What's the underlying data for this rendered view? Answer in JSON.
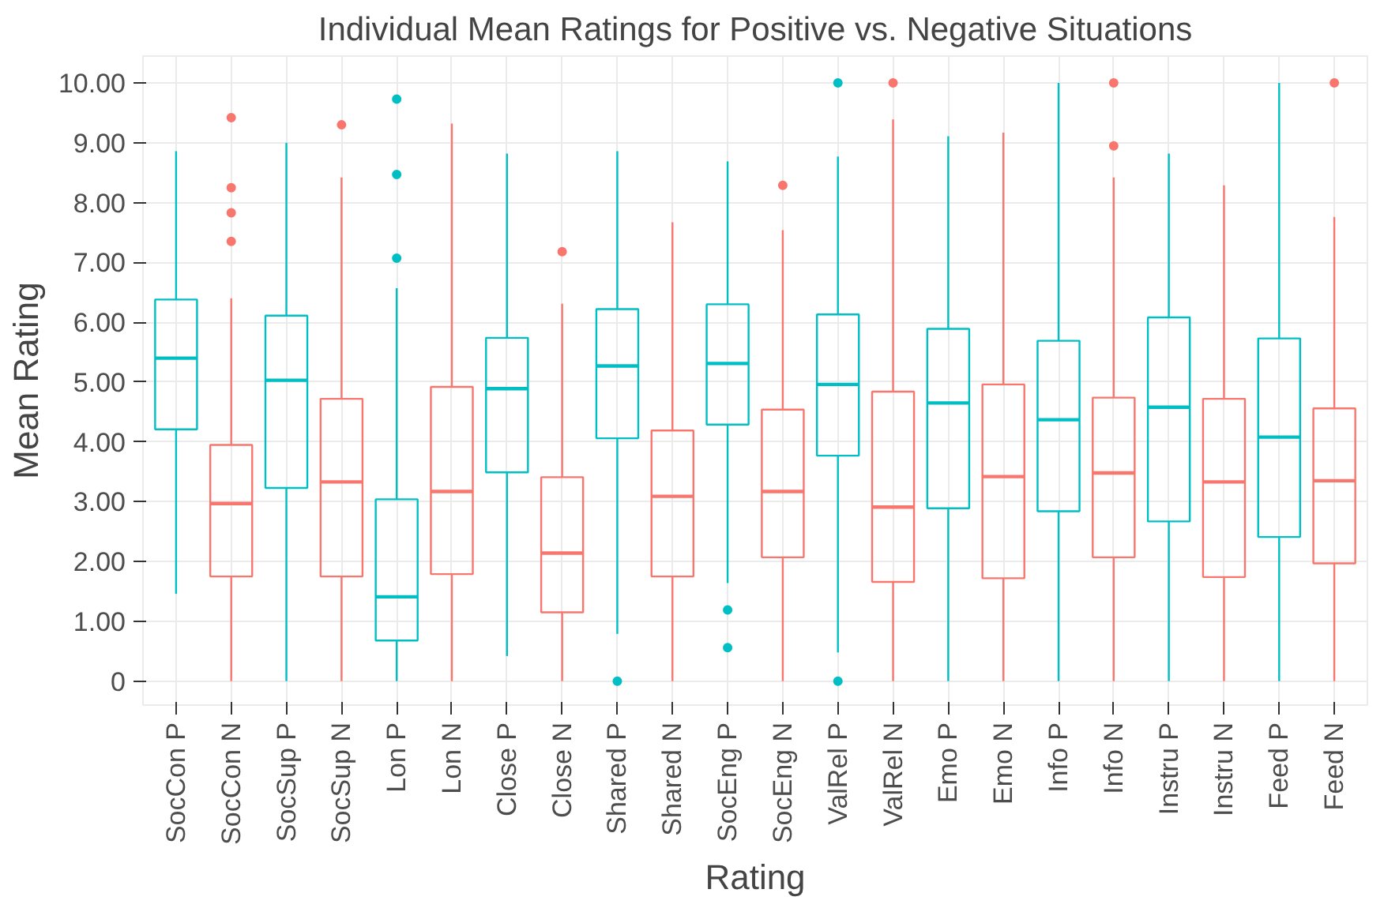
{
  "chart_data": {
    "type": "box",
    "title": "Individual Mean Ratings for Positive vs. Negative Situations",
    "xlabel": "Rating",
    "ylabel": "Mean Rating",
    "categories": [
      "SocCon P",
      "SocCon N",
      "SocSup P",
      "SocSup N",
      "Lon P",
      "Lon N",
      "Close P",
      "Close N",
      "Shared P",
      "Shared N",
      "SocEng P",
      "SocEng N",
      "ValRel P",
      "ValRel N",
      "Emo P",
      "Emo N",
      "Info P",
      "Info N",
      "Instru P",
      "Instru N",
      "Feed P",
      "Feed N"
    ],
    "colors": [
      "#00bfc4",
      "#f8766d",
      "#00bfc4",
      "#f8766d",
      "#00bfc4",
      "#f8766d",
      "#00bfc4",
      "#f8766d",
      "#00bfc4",
      "#f8766d",
      "#00bfc4",
      "#f8766d",
      "#00bfc4",
      "#f8766d",
      "#00bfc4",
      "#f8766d",
      "#00bfc4",
      "#f8766d",
      "#00bfc4",
      "#f8766d",
      "#00bfc4",
      "#f8766d"
    ],
    "boxes": [
      {
        "low": 1.46,
        "q1": 4.21,
        "median": 5.4,
        "q3": 6.38,
        "high": 8.86
      },
      {
        "low": 0,
        "q1": 1.75,
        "median": 2.97,
        "q3": 3.95,
        "high": 6.4,
        "outliers": [
          7.35,
          7.83,
          8.25,
          9.42
        ]
      },
      {
        "low": 0,
        "q1": 3.23,
        "median": 5.03,
        "q3": 6.11,
        "high": 9.0
      },
      {
        "low": 0,
        "q1": 1.75,
        "median": 3.33,
        "q3": 4.72,
        "high": 8.42,
        "outliers": [
          9.3
        ]
      },
      {
        "low": 0,
        "q1": 0.68,
        "median": 1.41,
        "q3": 3.04,
        "high": 6.57,
        "outliers": [
          7.07,
          8.47,
          9.73
        ]
      },
      {
        "low": 0,
        "q1": 1.79,
        "median": 3.17,
        "q3": 4.92,
        "high": 9.32
      },
      {
        "low": 0.42,
        "q1": 3.49,
        "median": 4.89,
        "q3": 5.74,
        "high": 8.82
      },
      {
        "low": 0,
        "q1": 1.15,
        "median": 2.14,
        "q3": 3.41,
        "high": 6.31,
        "outliers": [
          7.18
        ]
      },
      {
        "low": 0.79,
        "q1": 4.06,
        "median": 5.27,
        "q3": 6.22,
        "high": 8.86,
        "outliers": [
          0
        ]
      },
      {
        "low": 0,
        "q1": 1.75,
        "median": 3.09,
        "q3": 4.19,
        "high": 7.67
      },
      {
        "low": 1.64,
        "q1": 4.29,
        "median": 5.31,
        "q3": 6.3,
        "high": 8.69,
        "outliers": [
          1.19,
          0.56
        ]
      },
      {
        "low": 0,
        "q1": 2.07,
        "median": 3.17,
        "q3": 4.54,
        "high": 7.54,
        "outliers": [
          8.29
        ]
      },
      {
        "low": 0.48,
        "q1": 3.77,
        "median": 4.96,
        "q3": 6.13,
        "high": 8.77,
        "outliers": [
          10.0,
          0
        ]
      },
      {
        "low": 0,
        "q1": 1.66,
        "median": 2.91,
        "q3": 4.84,
        "high": 9.39,
        "outliers": [
          10.0
        ]
      },
      {
        "low": 0,
        "q1": 2.89,
        "median": 4.65,
        "q3": 5.89,
        "high": 9.11
      },
      {
        "low": 0,
        "q1": 1.72,
        "median": 3.42,
        "q3": 4.96,
        "high": 9.17
      },
      {
        "low": 0,
        "q1": 2.84,
        "median": 4.37,
        "q3": 5.69,
        "high": 10.0
      },
      {
        "low": 0,
        "q1": 2.07,
        "median": 3.48,
        "q3": 4.74,
        "high": 8.42,
        "outliers": [
          8.95,
          10.0
        ]
      },
      {
        "low": 0,
        "q1": 2.67,
        "median": 4.58,
        "q3": 6.08,
        "high": 8.82
      },
      {
        "low": 0,
        "q1": 1.74,
        "median": 3.33,
        "q3": 4.72,
        "high": 8.29
      },
      {
        "low": 0,
        "q1": 2.41,
        "median": 4.08,
        "q3": 5.73,
        "high": 10.0
      },
      {
        "low": 0,
        "q1": 1.97,
        "median": 3.35,
        "q3": 4.56,
        "high": 7.76,
        "outliers": [
          10.0
        ]
      }
    ],
    "ylim": [
      -0.4,
      10.45
    ],
    "yticks": [
      0,
      {
        "value": 1,
        "label": "1.00"
      },
      {
        "value": 2,
        "label": "2.00"
      },
      {
        "value": 3,
        "label": "3.00"
      },
      {
        "value": 4,
        "label": "4.00"
      },
      {
        "value": 5,
        "label": "5.00"
      },
      {
        "value": 6,
        "label": "6.00"
      },
      {
        "value": 7,
        "label": "7.00"
      },
      {
        "value": 8,
        "label": "8.00"
      },
      {
        "value": 9,
        "label": "9.00"
      },
      {
        "value": 10,
        "label": "10.00"
      }
    ],
    "grid": true
  }
}
